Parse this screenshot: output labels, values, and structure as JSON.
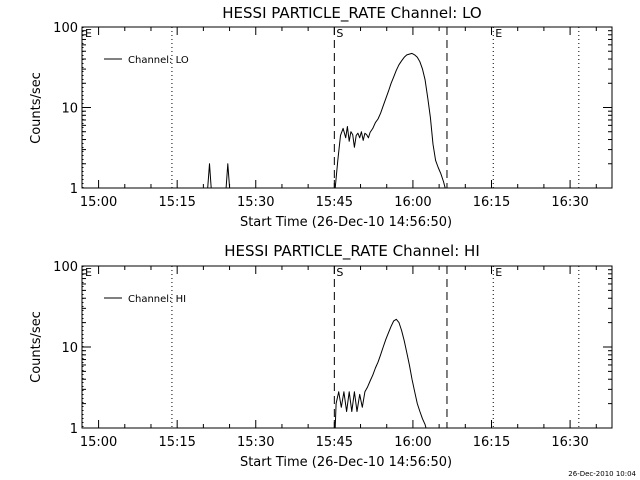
{
  "timestamp": "26-Dec-2010 10:04",
  "chart_data": [
    {
      "type": "line",
      "title": "HESSI PARTICLE_RATE Channel: LO",
      "xlabel": "Start Time (26-Dec-10 14:56:50)",
      "ylabel": "Counts/sec",
      "yscale": "log",
      "ylim": [
        1,
        100
      ],
      "xlim": [
        "14:56:50",
        "16:38:00"
      ],
      "x_ticks": [
        "15:00",
        "15:15",
        "15:30",
        "15:45",
        "16:00",
        "16:15",
        "16:30"
      ],
      "y_ticks": [
        "1",
        "10",
        "100"
      ],
      "legend": "top-left",
      "series": [
        {
          "name": "Channel: LO",
          "x": [
            "15:20:50",
            "15:21:10",
            "15:21:30",
            "15:24:20",
            "15:24:40",
            "15:25:00",
            "15:45:10",
            "15:45:40",
            "15:46:10",
            "15:46:40",
            "15:47:10",
            "15:47:30",
            "15:47:50",
            "15:48:10",
            "15:48:30",
            "15:48:50",
            "15:49:10",
            "15:49:30",
            "15:49:50",
            "15:50:10",
            "15:50:30",
            "15:50:50",
            "15:51:10",
            "15:51:30",
            "15:51:50",
            "15:52:20",
            "15:52:50",
            "15:53:20",
            "15:53:50",
            "15:54:20",
            "15:54:50",
            "15:55:20",
            "15:55:50",
            "15:56:20",
            "15:56:50",
            "15:57:20",
            "15:57:50",
            "15:58:20",
            "15:58:50",
            "15:59:20",
            "15:59:50",
            "16:00:20",
            "16:00:50",
            "16:01:20",
            "16:01:50",
            "16:02:20",
            "16:02:50",
            "16:03:20",
            "16:03:50",
            "16:04:20",
            "16:04:50",
            "16:05:20",
            "16:05:50",
            "16:06:10"
          ],
          "values": [
            1,
            2,
            1,
            1,
            2,
            1,
            1,
            2.2,
            4.5,
            5.5,
            4.2,
            5.8,
            3.8,
            5,
            4.6,
            3.2,
            4.5,
            4.8,
            4.2,
            5,
            3.9,
            4.8,
            4.6,
            4.2,
            4.9,
            5.5,
            6.5,
            7.2,
            8.5,
            10.5,
            13,
            16,
            20,
            24,
            29,
            34,
            38,
            42,
            45,
            46,
            47,
            45,
            42,
            37,
            30,
            22,
            13,
            7.5,
            3.5,
            2.2,
            1.8,
            1.5,
            1.2,
            1
          ]
        }
      ],
      "annotations": [
        {
          "label": "E",
          "x": "14:56:50",
          "style": "dotted"
        },
        {
          "label": "",
          "x": "15:14:00",
          "style": "dotted"
        },
        {
          "label": "S",
          "x": "15:45:00",
          "style": "dashed"
        },
        {
          "label": "",
          "x": "16:06:30",
          "style": "dashed"
        },
        {
          "label": "E",
          "x": "16:15:20",
          "style": "dotted"
        },
        {
          "label": "",
          "x": "16:31:40",
          "style": "dotted"
        }
      ]
    },
    {
      "type": "line",
      "title": "HESSI PARTICLE_RATE Channel: HI",
      "xlabel": "Start Time (26-Dec-10 14:56:50)",
      "ylabel": "Counts/sec",
      "yscale": "log",
      "ylim": [
        1,
        100
      ],
      "xlim": [
        "14:56:50",
        "16:38:00"
      ],
      "x_ticks": [
        "15:00",
        "15:15",
        "15:30",
        "15:45",
        "16:00",
        "16:15",
        "16:30"
      ],
      "y_ticks": [
        "1",
        "10",
        "100"
      ],
      "legend": "top-left",
      "series": [
        {
          "name": "Channel: HI",
          "x": [
            "15:45:10",
            "15:45:20",
            "15:45:50",
            "15:46:20",
            "15:46:50",
            "15:47:20",
            "15:47:50",
            "15:48:20",
            "15:48:50",
            "15:49:20",
            "15:49:50",
            "15:50:20",
            "15:50:50",
            "15:51:20",
            "15:51:50",
            "15:52:20",
            "15:52:50",
            "15:53:20",
            "15:53:50",
            "15:54:20",
            "15:54:50",
            "15:55:20",
            "15:55:50",
            "15:56:20",
            "15:56:50",
            "15:57:20",
            "15:57:50",
            "15:58:20",
            "15:58:50",
            "15:59:20",
            "15:59:50",
            "16:00:20",
            "16:00:50",
            "16:01:20",
            "16:01:50",
            "16:02:20",
            "16:02:30"
          ],
          "values": [
            1,
            2,
            2.8,
            1.8,
            2.8,
            1.6,
            2.8,
            1.6,
            2.8,
            1.6,
            2.6,
            1.8,
            2.8,
            3.2,
            3.8,
            4.5,
            5.5,
            6.5,
            8,
            10,
            12.5,
            15,
            18,
            21,
            22,
            20,
            16,
            12,
            8.5,
            6,
            4,
            2.8,
            2,
            1.6,
            1.3,
            1.1,
            1
          ]
        }
      ],
      "annotations": [
        {
          "label": "E",
          "x": "14:56:50",
          "style": "dotted"
        },
        {
          "label": "",
          "x": "15:14:00",
          "style": "dotted"
        },
        {
          "label": "S",
          "x": "15:45:00",
          "style": "dashed"
        },
        {
          "label": "",
          "x": "16:06:30",
          "style": "dashed"
        },
        {
          "label": "E",
          "x": "16:15:20",
          "style": "dotted"
        },
        {
          "label": "",
          "x": "16:31:40",
          "style": "dotted"
        }
      ]
    }
  ]
}
